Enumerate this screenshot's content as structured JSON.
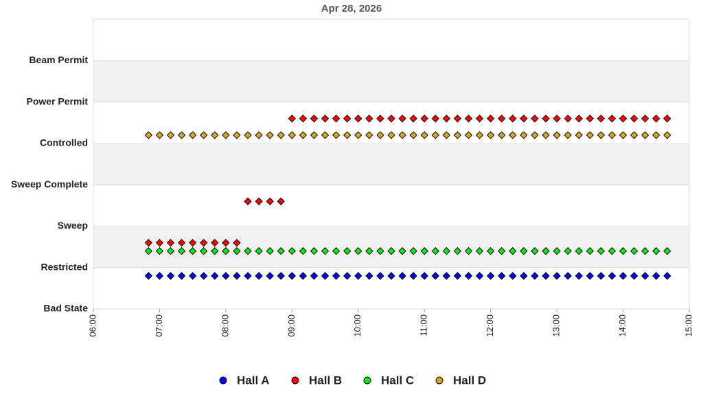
{
  "chart_data": {
    "type": "scatter",
    "title": "Apr 28, 2026",
    "x": [
      "06:50",
      "07:00",
      "07:10",
      "07:20",
      "07:30",
      "07:40",
      "07:50",
      "08:00",
      "08:10",
      "08:20",
      "08:30",
      "08:40",
      "08:50",
      "09:00",
      "09:10",
      "09:20",
      "09:30",
      "09:40",
      "09:50",
      "10:00",
      "10:10",
      "10:20",
      "10:30",
      "10:40",
      "10:50",
      "11:00",
      "11:10",
      "11:20",
      "11:30",
      "11:40",
      "11:50",
      "12:00",
      "12:10",
      "12:20",
      "12:30",
      "12:40",
      "12:50",
      "13:00",
      "13:10",
      "13:20",
      "13:30",
      "13:40",
      "13:50",
      "14:00",
      "14:10",
      "14:20",
      "14:30",
      "14:40"
    ],
    "series": [
      {
        "name": "Hall A",
        "color": "#0000ff",
        "values": [
          0.8,
          0.8,
          0.8,
          0.8,
          0.8,
          0.8,
          0.8,
          0.8,
          0.8,
          0.8,
          0.8,
          0.8,
          0.8,
          0.8,
          0.8,
          0.8,
          0.8,
          0.8,
          0.8,
          0.8,
          0.8,
          0.8,
          0.8,
          0.8,
          0.8,
          0.8,
          0.8,
          0.8,
          0.8,
          0.8,
          0.8,
          0.8,
          0.8,
          0.8,
          0.8,
          0.8,
          0.8,
          0.8,
          0.8,
          0.8,
          0.8,
          0.8,
          0.8,
          0.8,
          0.8,
          0.8,
          0.8,
          0.8
        ]
      },
      {
        "name": "Hall B",
        "color": "#ff0000",
        "values": [
          1.6,
          1.6,
          1.6,
          1.6,
          1.6,
          1.6,
          1.6,
          1.6,
          1.6,
          2.6,
          2.6,
          2.6,
          2.6,
          4.6,
          4.6,
          4.6,
          4.6,
          4.6,
          4.6,
          4.6,
          4.6,
          4.6,
          4.6,
          4.6,
          4.6,
          4.6,
          4.6,
          4.6,
          4.6,
          4.6,
          4.6,
          4.6,
          4.6,
          4.6,
          4.6,
          4.6,
          4.6,
          4.6,
          4.6,
          4.6,
          4.6,
          4.6,
          4.6,
          4.6,
          4.6,
          4.6,
          4.6,
          4.6
        ]
      },
      {
        "name": "Hall C",
        "color": "#00ee00",
        "values": [
          1.4,
          1.4,
          1.4,
          1.4,
          1.4,
          1.4,
          1.4,
          1.4,
          1.4,
          1.4,
          1.4,
          1.4,
          1.4,
          1.4,
          1.4,
          1.4,
          1.4,
          1.4,
          1.4,
          1.4,
          1.4,
          1.4,
          1.4,
          1.4,
          1.4,
          1.4,
          1.4,
          1.4,
          1.4,
          1.4,
          1.4,
          1.4,
          1.4,
          1.4,
          1.4,
          1.4,
          1.4,
          1.4,
          1.4,
          1.4,
          1.4,
          1.4,
          1.4,
          1.4,
          1.4,
          1.4,
          1.4,
          1.4
        ]
      },
      {
        "name": "Hall D",
        "color": "#daa520",
        "values": [
          4.2,
          4.2,
          4.2,
          4.2,
          4.2,
          4.2,
          4.2,
          4.2,
          4.2,
          4.2,
          4.2,
          4.2,
          4.2,
          4.2,
          4.2,
          4.2,
          4.2,
          4.2,
          4.2,
          4.2,
          4.2,
          4.2,
          4.2,
          4.2,
          4.2,
          4.2,
          4.2,
          4.2,
          4.2,
          4.2,
          4.2,
          4.2,
          4.2,
          4.2,
          4.2,
          4.2,
          4.2,
          4.2,
          4.2,
          4.2,
          4.2,
          4.2,
          4.2,
          4.2,
          4.2,
          4.2,
          4.2,
          4.2
        ]
      }
    ],
    "xlim": [
      "06:00",
      "15:00"
    ],
    "xticks": [
      "06:00",
      "07:00",
      "08:00",
      "09:00",
      "10:00",
      "11:00",
      "12:00",
      "13:00",
      "14:00",
      "15:00"
    ],
    "ylim": [
      0,
      7
    ],
    "yticks": [
      {
        "value": 0,
        "label": "Bad State"
      },
      {
        "value": 1,
        "label": "Restricted"
      },
      {
        "value": 2,
        "label": "Sweep"
      },
      {
        "value": 3,
        "label": "Sweep Complete"
      },
      {
        "value": 4,
        "label": "Controlled"
      },
      {
        "value": 5,
        "label": "Power Permit"
      },
      {
        "value": 6,
        "label": "Beam Permit"
      }
    ],
    "legend": "bottom"
  }
}
